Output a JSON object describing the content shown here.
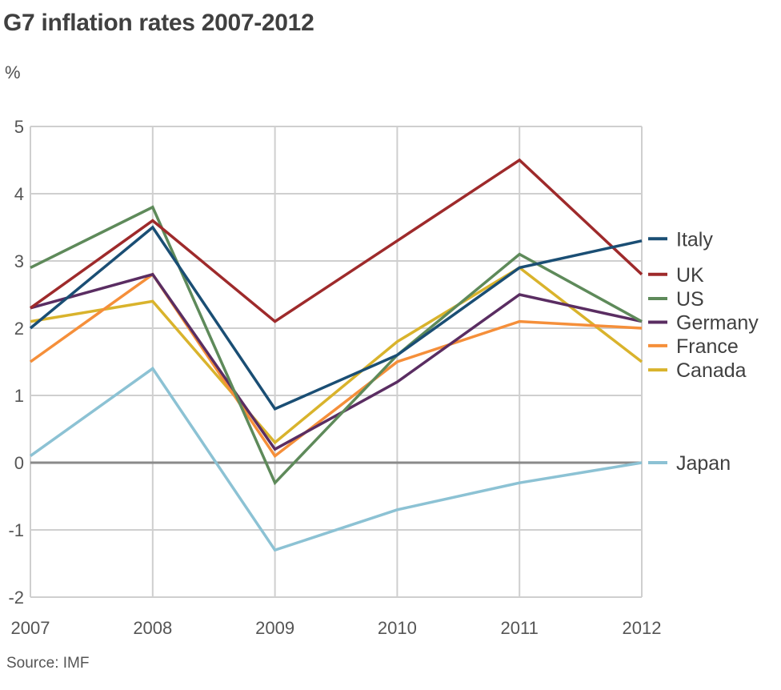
{
  "title": "G7 inflation rates 2007-2012",
  "unit_label": "%",
  "source": "Source: IMF",
  "chart_data": {
    "type": "line",
    "title": "G7 inflation rates 2007-2012",
    "xlabel": "",
    "ylabel": "%",
    "x": [
      2007,
      2008,
      2009,
      2010,
      2011,
      2012
    ],
    "x_tick_labels": [
      "2007",
      "2008",
      "2009",
      "2010",
      "2011",
      "2012"
    ],
    "y_ticks": [
      5,
      4,
      3,
      2,
      1,
      0,
      -1,
      -2
    ],
    "y_tick_labels": [
      "5",
      "4",
      "3",
      "2",
      "1",
      "0",
      "-1",
      "-2"
    ],
    "ylim": [
      -2,
      5
    ],
    "grid": true,
    "legend_placement": "right",
    "series": [
      {
        "name": "Italy",
        "color": "#1a4e74",
        "values": [
          2.0,
          3.5,
          0.8,
          1.6,
          2.9,
          3.3
        ],
        "legend_y": 3.33
      },
      {
        "name": "UK",
        "color": "#9e2a2b",
        "values": [
          2.3,
          3.6,
          2.1,
          3.3,
          4.5,
          2.8
        ],
        "legend_y": 2.8
      },
      {
        "name": "US",
        "color": "#5e8a5a",
        "values": [
          2.9,
          3.8,
          -0.3,
          1.6,
          3.1,
          2.1
        ],
        "legend_y": 2.44
      },
      {
        "name": "Germany",
        "color": "#5a2d62",
        "values": [
          2.3,
          2.8,
          0.2,
          1.2,
          2.5,
          2.1
        ],
        "legend_y": 2.09
      },
      {
        "name": "France",
        "color": "#f58f3a",
        "values": [
          1.5,
          2.8,
          0.1,
          1.5,
          2.1,
          2.0
        ],
        "legend_y": 1.74
      },
      {
        "name": "Canada",
        "color": "#d9b32c",
        "values": [
          2.1,
          2.4,
          0.3,
          1.8,
          2.9,
          1.5
        ],
        "legend_y": 1.38
      },
      {
        "name": "Japan",
        "color": "#8cc2d4",
        "values": [
          0.1,
          1.4,
          -1.3,
          -0.7,
          -0.3,
          0.0
        ],
        "legend_y": 0.0
      }
    ]
  }
}
